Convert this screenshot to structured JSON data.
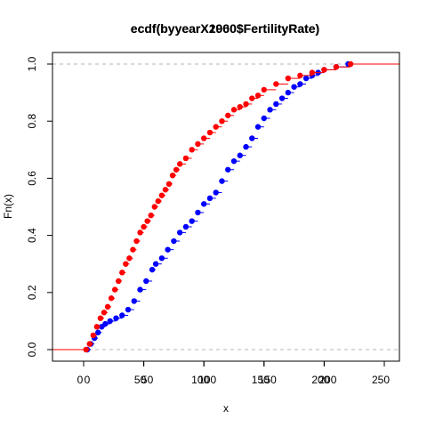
{
  "chart_data": {
    "type": "scatter",
    "title": "ecdf(byyearX2000$FertilityRate)",
    "title_overlay": "ecdf(byyearX1960$FertilityRate)",
    "xlabel": "x",
    "ylabel": "Fn(x)",
    "xlim": [
      -25,
      255
    ],
    "ylim": [
      0,
      1
    ],
    "xaxes": [
      {
        "ticks": [
          0,
          50,
          100,
          150,
          200,
          250
        ],
        "labels": [
          "0",
          "50",
          "100",
          "150",
          "200",
          "250"
        ]
      },
      {
        "ticks": [
          0,
          50,
          100,
          150,
          200
        ],
        "labels": [
          "0",
          "50",
          "100",
          "150",
          "200"
        ]
      }
    ],
    "yticks": [
      0.0,
      0.2,
      0.4,
      0.6,
      0.8,
      1.0
    ],
    "ytick_labels": [
      "0.0",
      "0.2",
      "0.4",
      "0.6",
      "0.8",
      "1.0"
    ],
    "reference_lines": [
      0,
      1
    ],
    "grid": false,
    "series": [
      {
        "color": "#0000ff",
        "x": [
          3,
          6,
          9,
          12,
          15,
          18,
          22,
          27,
          32,
          37,
          42,
          47,
          52,
          57,
          60,
          65,
          70,
          75,
          80,
          85,
          90,
          95,
          100,
          105,
          110,
          115,
          120,
          125,
          130,
          135,
          140,
          145,
          150,
          155,
          160,
          165,
          170,
          175,
          180,
          185,
          190,
          195,
          200,
          210,
          220
        ],
        "y": [
          0.0,
          0.02,
          0.04,
          0.06,
          0.08,
          0.09,
          0.1,
          0.11,
          0.12,
          0.14,
          0.17,
          0.21,
          0.24,
          0.28,
          0.3,
          0.32,
          0.35,
          0.38,
          0.41,
          0.43,
          0.45,
          0.48,
          0.51,
          0.53,
          0.55,
          0.59,
          0.63,
          0.66,
          0.68,
          0.71,
          0.74,
          0.78,
          0.81,
          0.84,
          0.86,
          0.88,
          0.9,
          0.92,
          0.93,
          0.95,
          0.96,
          0.97,
          0.98,
          0.99,
          1.0
        ]
      },
      {
        "color": "#ff0000",
        "x": [
          2,
          5,
          8,
          11,
          14,
          17,
          20,
          23,
          26,
          29,
          32,
          35,
          38,
          41,
          44,
          47,
          50,
          53,
          56,
          59,
          62,
          65,
          68,
          71,
          74,
          77,
          80,
          85,
          90,
          95,
          100,
          105,
          110,
          115,
          120,
          125,
          130,
          135,
          140,
          145,
          150,
          160,
          170,
          180,
          190,
          200,
          210,
          222
        ],
        "y": [
          0.0,
          0.02,
          0.05,
          0.08,
          0.11,
          0.13,
          0.15,
          0.18,
          0.21,
          0.24,
          0.27,
          0.3,
          0.32,
          0.35,
          0.38,
          0.41,
          0.43,
          0.45,
          0.47,
          0.5,
          0.52,
          0.54,
          0.56,
          0.58,
          0.61,
          0.63,
          0.65,
          0.67,
          0.7,
          0.72,
          0.74,
          0.76,
          0.78,
          0.8,
          0.82,
          0.84,
          0.85,
          0.86,
          0.88,
          0.89,
          0.91,
          0.93,
          0.95,
          0.96,
          0.97,
          0.98,
          0.99,
          1.0
        ]
      }
    ]
  }
}
